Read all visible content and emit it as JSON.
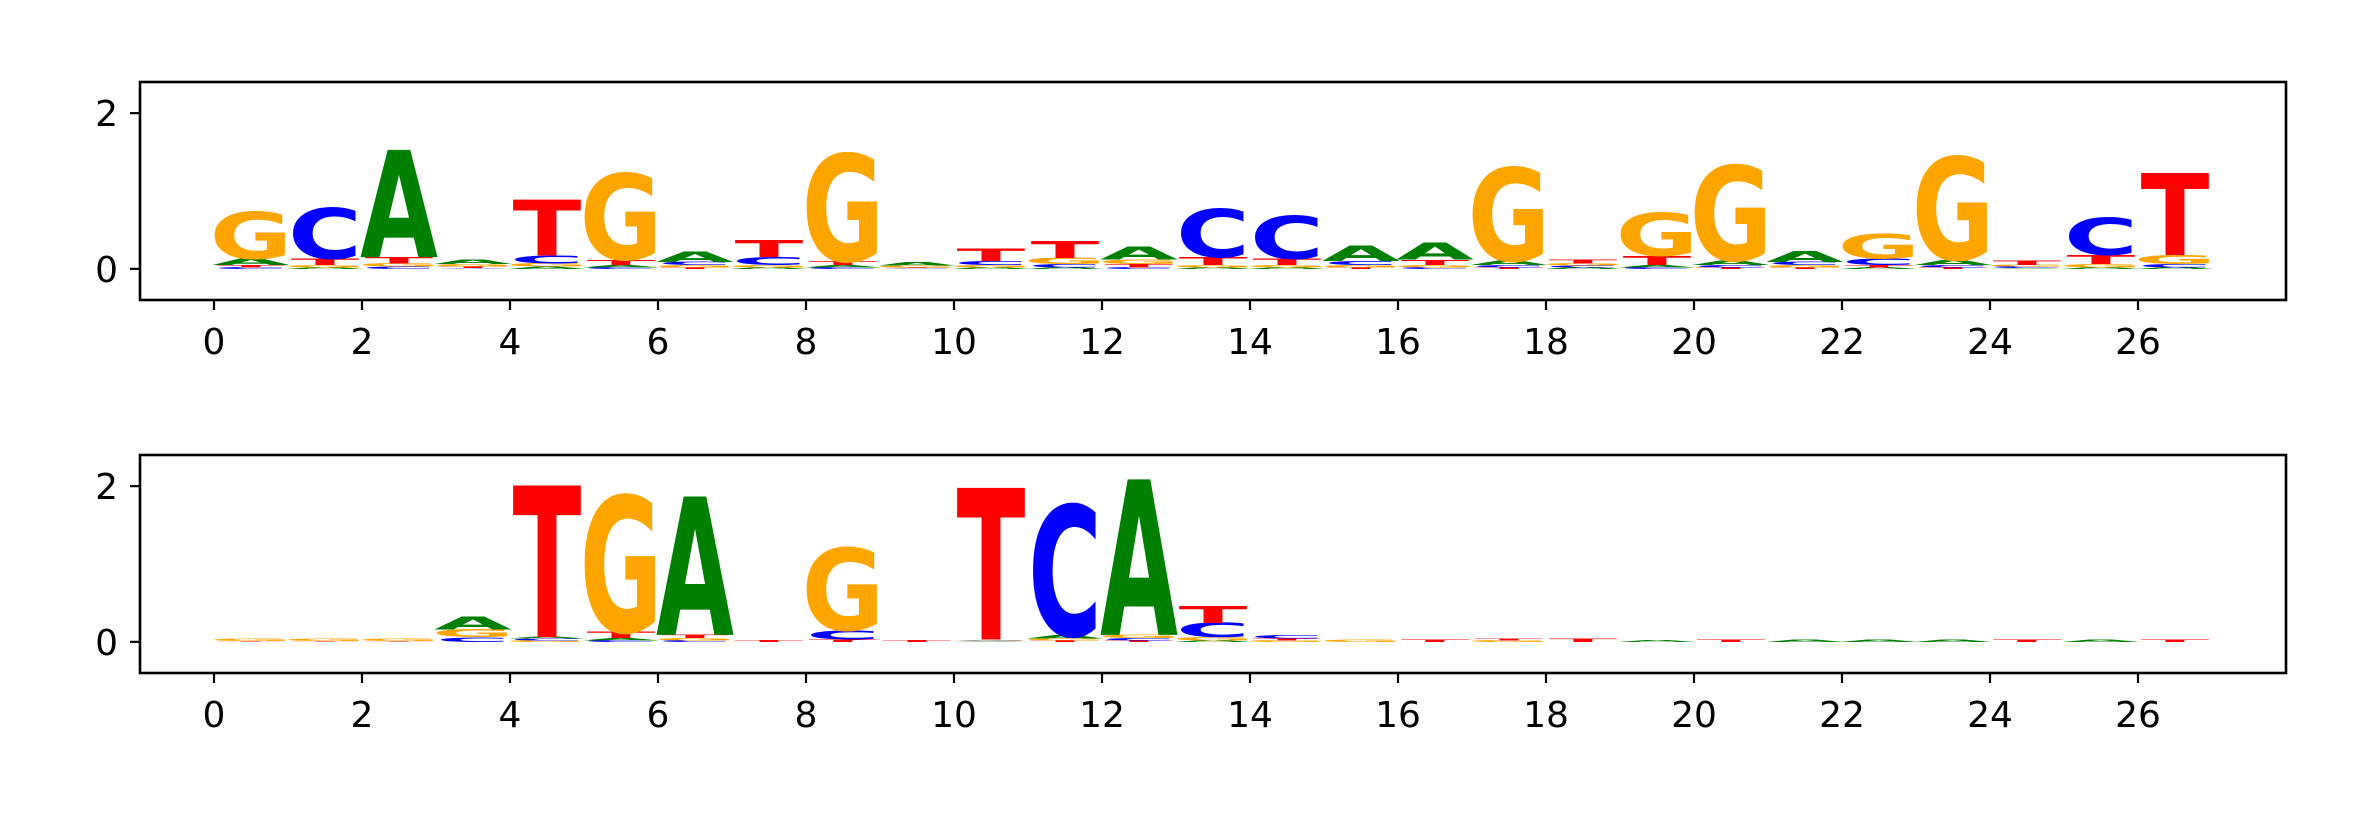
{
  "colors": {
    "A": "#008000",
    "C": "#0000ff",
    "G": "#ffa500",
    "T": "#ff0000"
  },
  "chart_data": [
    {
      "type": "sequence-logo",
      "title": "",
      "xlabel": "",
      "ylabel": "",
      "xlim": [
        -1,
        28
      ],
      "ylim": [
        -0.4,
        2.4
      ],
      "xticks": [
        0,
        2,
        4,
        6,
        8,
        10,
        12,
        14,
        16,
        18,
        20,
        22,
        24,
        26
      ],
      "yticks": [
        0,
        2
      ],
      "positions": [
        {
          "x": 0.5,
          "letters": [
            [
              "C",
              0.02
            ],
            [
              "T",
              0.03
            ],
            [
              "A",
              0.08
            ],
            [
              "G",
              0.6
            ]
          ]
        },
        {
          "x": 1.5,
          "letters": [
            [
              "A",
              0.02
            ],
            [
              "G",
              0.03
            ],
            [
              "T",
              0.08
            ],
            [
              "C",
              0.65
            ]
          ]
        },
        {
          "x": 2.5,
          "letters": [
            [
              "C",
              0.03
            ],
            [
              "G",
              0.04
            ],
            [
              "T",
              0.08
            ],
            [
              "A",
              1.38
            ]
          ]
        },
        {
          "x": 3.5,
          "letters": [
            [
              "C",
              0.01
            ],
            [
              "T",
              0.02
            ],
            [
              "G",
              0.03
            ],
            [
              "A",
              0.06
            ]
          ]
        },
        {
          "x": 4.5,
          "letters": [
            [
              "A",
              0.03
            ],
            [
              "G",
              0.04
            ],
            [
              "C",
              0.1
            ],
            [
              "T",
              0.72
            ]
          ]
        },
        {
          "x": 5.5,
          "letters": [
            [
              "C",
              0.02
            ],
            [
              "A",
              0.03
            ],
            [
              "T",
              0.07
            ],
            [
              "G",
              1.1
            ]
          ]
        },
        {
          "x": 6.5,
          "letters": [
            [
              "T",
              0.02
            ],
            [
              "G",
              0.03
            ],
            [
              "C",
              0.04
            ],
            [
              "A",
              0.13
            ]
          ]
        },
        {
          "x": 7.5,
          "letters": [
            [
              "A",
              0.02
            ],
            [
              "G",
              0.03
            ],
            [
              "C",
              0.1
            ],
            [
              "T",
              0.22
            ]
          ]
        },
        {
          "x": 8.5,
          "letters": [
            [
              "C",
              0.02
            ],
            [
              "A",
              0.03
            ],
            [
              "T",
              0.05
            ],
            [
              "G",
              1.38
            ]
          ]
        },
        {
          "x": 9.5,
          "letters": [
            [
              "C",
              0.01
            ],
            [
              "T",
              0.01
            ],
            [
              "G",
              0.02
            ],
            [
              "A",
              0.04
            ]
          ]
        },
        {
          "x": 10.5,
          "letters": [
            [
              "A",
              0.02
            ],
            [
              "G",
              0.03
            ],
            [
              "C",
              0.05
            ],
            [
              "T",
              0.16
            ]
          ]
        },
        {
          "x": 11.5,
          "letters": [
            [
              "A",
              0.02
            ],
            [
              "C",
              0.04
            ],
            [
              "G",
              0.08
            ],
            [
              "T",
              0.22
            ]
          ]
        },
        {
          "x": 12.5,
          "letters": [
            [
              "C",
              0.02
            ],
            [
              "T",
              0.04
            ],
            [
              "G",
              0.06
            ],
            [
              "A",
              0.17
            ]
          ]
        },
        {
          "x": 13.5,
          "letters": [
            [
              "A",
              0.02
            ],
            [
              "G",
              0.03
            ],
            [
              "T",
              0.1
            ],
            [
              "C",
              0.62
            ]
          ]
        },
        {
          "x": 14.5,
          "letters": [
            [
              "A",
              0.02
            ],
            [
              "G",
              0.03
            ],
            [
              "T",
              0.08
            ],
            [
              "C",
              0.55
            ]
          ]
        },
        {
          "x": 15.5,
          "letters": [
            [
              "T",
              0.02
            ],
            [
              "G",
              0.03
            ],
            [
              "C",
              0.05
            ],
            [
              "A",
              0.2
            ]
          ]
        },
        {
          "x": 16.5,
          "letters": [
            [
              "C",
              0.02
            ],
            [
              "G",
              0.03
            ],
            [
              "T",
              0.07
            ],
            [
              "A",
              0.22
            ]
          ]
        },
        {
          "x": 17.5,
          "letters": [
            [
              "T",
              0.02
            ],
            [
              "C",
              0.03
            ],
            [
              "A",
              0.06
            ],
            [
              "G",
              1.2
            ]
          ]
        },
        {
          "x": 18.5,
          "letters": [
            [
              "A",
              0.02
            ],
            [
              "C",
              0.02
            ],
            [
              "G",
              0.03
            ],
            [
              "T",
              0.05
            ]
          ]
        },
        {
          "x": 19.5,
          "letters": [
            [
              "C",
              0.02
            ],
            [
              "A",
              0.03
            ],
            [
              "T",
              0.12
            ],
            [
              "G",
              0.55
            ]
          ]
        },
        {
          "x": 20.5,
          "letters": [
            [
              "T",
              0.02
            ],
            [
              "C",
              0.03
            ],
            [
              "A",
              0.06
            ],
            [
              "G",
              1.22
            ]
          ]
        },
        {
          "x": 21.5,
          "letters": [
            [
              "T",
              0.02
            ],
            [
              "G",
              0.03
            ],
            [
              "C",
              0.04
            ],
            [
              "A",
              0.14
            ]
          ]
        },
        {
          "x": 22.5,
          "letters": [
            [
              "A",
              0.02
            ],
            [
              "T",
              0.03
            ],
            [
              "C",
              0.08
            ],
            [
              "G",
              0.32
            ]
          ]
        },
        {
          "x": 23.5,
          "letters": [
            [
              "T",
              0.02
            ],
            [
              "C",
              0.03
            ],
            [
              "A",
              0.07
            ],
            [
              "G",
              1.32
            ]
          ]
        },
        {
          "x": 24.5,
          "letters": [
            [
              "A",
              0.01
            ],
            [
              "C",
              0.02
            ],
            [
              "G",
              0.02
            ],
            [
              "T",
              0.06
            ]
          ]
        },
        {
          "x": 25.5,
          "letters": [
            [
              "A",
              0.02
            ],
            [
              "G",
              0.04
            ],
            [
              "T",
              0.12
            ],
            [
              "C",
              0.48
            ]
          ]
        },
        {
          "x": 26.5,
          "letters": [
            [
              "A",
              0.02
            ],
            [
              "C",
              0.04
            ],
            [
              "G",
              0.12
            ],
            [
              "T",
              1.05
            ]
          ]
        }
      ]
    },
    {
      "type": "sequence-logo",
      "title": "",
      "xlabel": "",
      "ylabel": "",
      "xlim": [
        -1,
        28
      ],
      "ylim": [
        -0.4,
        2.4
      ],
      "xticks": [
        0,
        2,
        4,
        6,
        8,
        10,
        12,
        14,
        16,
        18,
        20,
        22,
        24,
        26
      ],
      "yticks": [
        0,
        2
      ],
      "positions": [
        {
          "x": 0.5,
          "letters": [
            [
              "T",
              0.01
            ],
            [
              "G",
              0.03
            ]
          ]
        },
        {
          "x": 1.5,
          "letters": [
            [
              "T",
              0.01
            ],
            [
              "G",
              0.03
            ]
          ]
        },
        {
          "x": 2.5,
          "letters": [
            [
              "T",
              0.01
            ],
            [
              "G",
              0.03
            ]
          ]
        },
        {
          "x": 3.5,
          "letters": [
            [
              "C",
              0.06
            ],
            [
              "G",
              0.1
            ],
            [
              "A",
              0.17
            ]
          ]
        },
        {
          "x": 4.5,
          "letters": [
            [
              "G",
              0.02
            ],
            [
              "C",
              0.02
            ],
            [
              "A",
              0.02
            ],
            [
              "T",
              1.95
            ]
          ]
        },
        {
          "x": 5.5,
          "letters": [
            [
              "C",
              0.02
            ],
            [
              "A",
              0.03
            ],
            [
              "T",
              0.08
            ],
            [
              "G",
              1.75
            ]
          ]
        },
        {
          "x": 6.5,
          "letters": [
            [
              "C",
              0.02
            ],
            [
              "G",
              0.03
            ],
            [
              "T",
              0.04
            ],
            [
              "A",
              1.78
            ]
          ]
        },
        {
          "x": 7.5,
          "letters": [
            [
              "T",
              0.02
            ]
          ]
        },
        {
          "x": 8.5,
          "letters": [
            [
              "T",
              0.03
            ],
            [
              "C",
              0.12
            ],
            [
              "G",
              1.05
            ]
          ]
        },
        {
          "x": 9.5,
          "letters": [
            [
              "T",
              0.02
            ]
          ]
        },
        {
          "x": 10.5,
          "letters": [
            [
              "A",
              0.01
            ],
            [
              "G",
              0.01
            ],
            [
              "C",
              0.01
            ],
            [
              "T",
              1.95
            ]
          ]
        },
        {
          "x": 11.5,
          "letters": [
            [
              "T",
              0.02
            ],
            [
              "G",
              0.02
            ],
            [
              "A",
              0.04
            ],
            [
              "C",
              1.68
            ]
          ]
        },
        {
          "x": 12.5,
          "letters": [
            [
              "T",
              0.02
            ],
            [
              "C",
              0.03
            ],
            [
              "G",
              0.04
            ],
            [
              "A",
              2.0
            ]
          ]
        },
        {
          "x": 13.5,
          "letters": [
            [
              "A",
              0.02
            ],
            [
              "G",
              0.04
            ],
            [
              "C",
              0.18
            ],
            [
              "T",
              0.22
            ]
          ]
        },
        {
          "x": 14.5,
          "letters": [
            [
              "G",
              0.02
            ],
            [
              "T",
              0.02
            ],
            [
              "C",
              0.04
            ]
          ]
        },
        {
          "x": 15.5,
          "letters": [
            [
              "G",
              0.03
            ]
          ]
        },
        {
          "x": 16.5,
          "letters": [
            [
              "T",
              0.03
            ]
          ]
        },
        {
          "x": 17.5,
          "letters": [
            [
              "G",
              0.02
            ],
            [
              "T",
              0.02
            ]
          ]
        },
        {
          "x": 18.5,
          "letters": [
            [
              "T",
              0.04
            ]
          ]
        },
        {
          "x": 19.5,
          "letters": [
            [
              "A",
              0.02
            ]
          ]
        },
        {
          "x": 20.5,
          "letters": [
            [
              "T",
              0.03
            ]
          ]
        },
        {
          "x": 21.5,
          "letters": [
            [
              "A",
              0.03
            ]
          ]
        },
        {
          "x": 22.5,
          "letters": [
            [
              "A",
              0.03
            ]
          ]
        },
        {
          "x": 23.5,
          "letters": [
            [
              "A",
              0.03
            ]
          ]
        },
        {
          "x": 24.5,
          "letters": [
            [
              "T",
              0.03
            ]
          ]
        },
        {
          "x": 25.5,
          "letters": [
            [
              "A",
              0.03
            ]
          ]
        },
        {
          "x": 26.5,
          "letters": [
            [
              "T",
              0.03
            ]
          ]
        }
      ]
    }
  ]
}
